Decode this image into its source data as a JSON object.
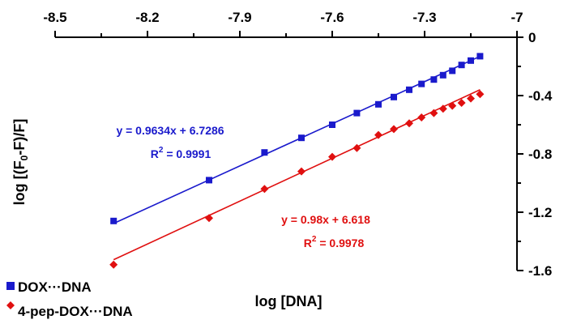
{
  "chart_data": {
    "type": "scatter",
    "xlabel": "log [DNA]",
    "ylabel": "log [(F",
    "ylabel_sub": "0",
    "ylabel_rest": "-F)/F]",
    "x_axis_position": "top",
    "y_axis_position": "right",
    "xlim": [
      -8.5,
      -7.0
    ],
    "ylim": [
      -1.6,
      0
    ],
    "x_ticks": [
      "-8.5",
      "-8.2",
      "-7.9",
      "-7.6",
      "-7.3",
      "-7"
    ],
    "y_ticks": [
      "0",
      "-0.4",
      "-0.8",
      "-1.2",
      "-1.6"
    ],
    "grid": false,
    "legend_placement": "bottom-left",
    "series": [
      {
        "name": "DOX···DNA",
        "color": "#1a1acc",
        "marker": "square",
        "x": [
          -8.31,
          -8.0,
          -7.82,
          -7.7,
          -7.6,
          -7.52,
          -7.45,
          -7.4,
          -7.35,
          -7.31,
          -7.27,
          -7.24,
          -7.21,
          -7.18,
          -7.15,
          -7.12
        ],
        "y": [
          -1.26,
          -0.98,
          -0.79,
          -0.69,
          -0.6,
          -0.52,
          -0.46,
          -0.41,
          -0.36,
          -0.32,
          -0.29,
          -0.26,
          -0.23,
          -0.19,
          -0.16,
          -0.13
        ],
        "fit": {
          "slope": 0.9634,
          "intercept": 6.7286
        },
        "equation": "y = 0.9634x + 6.7286",
        "r2_label": "R",
        "r2_sup": "2",
        "r2_value": " = 0.9991"
      },
      {
        "name": "4-pep-DOX···DNA",
        "color": "#e01010",
        "marker": "diamond",
        "x": [
          -8.31,
          -8.0,
          -7.82,
          -7.7,
          -7.6,
          -7.52,
          -7.45,
          -7.4,
          -7.35,
          -7.31,
          -7.27,
          -7.24,
          -7.21,
          -7.18,
          -7.15,
          -7.12
        ],
        "y": [
          -1.56,
          -1.24,
          -1.04,
          -0.92,
          -0.82,
          -0.76,
          -0.67,
          -0.63,
          -0.59,
          -0.55,
          -0.52,
          -0.49,
          -0.47,
          -0.45,
          -0.42,
          -0.39
        ],
        "fit": {
          "slope": 0.98,
          "intercept": 6.618
        },
        "equation": "y = 0.98x + 6.618",
        "r2_label": "R",
        "r2_sup": "2",
        "r2_value": " = 0.9978"
      }
    ]
  }
}
